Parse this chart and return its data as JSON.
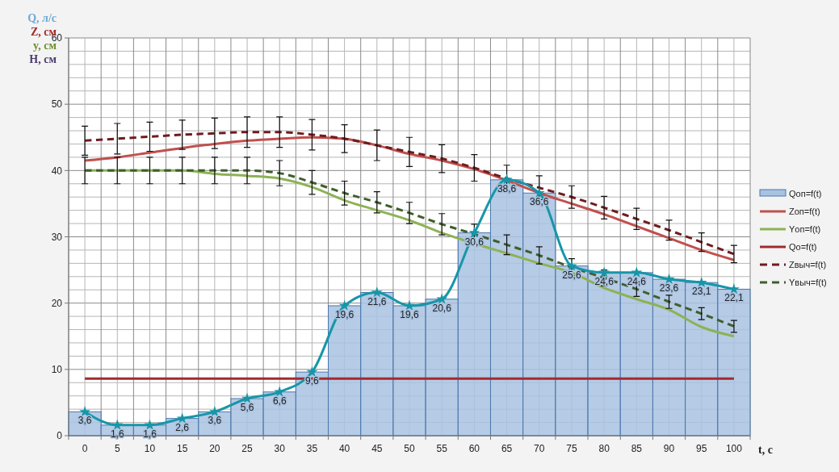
{
  "chart_data": {
    "type": "bar",
    "categories": [
      "0",
      "5",
      "10",
      "15",
      "20",
      "25",
      "30",
      "35",
      "40",
      "45",
      "50",
      "55",
      "60",
      "65",
      "70",
      "75",
      "80",
      "85",
      "90",
      "95",
      "100"
    ],
    "xlabel": "t, с",
    "annotations": [
      "Q, л/с",
      "Z, см",
      "y, см",
      "H, см"
    ],
    "ylim": [
      0,
      60
    ],
    "yticks": [
      0,
      {
        "value": 2,
        "label": null
      },
      {
        "value": 4,
        "label": null
      },
      {
        "value": 6,
        "label": null
      },
      {
        "value": 8,
        "label": null
      },
      10,
      {
        "value": 12,
        "label": null
      },
      {
        "value": 14,
        "label": null
      },
      {
        "value": 16,
        "label": null
      },
      {
        "value": 18,
        "label": null
      },
      20,
      {
        "value": 22,
        "label": null
      },
      {
        "value": 24,
        "label": null
      },
      {
        "value": 26,
        "label": null
      },
      {
        "value": 28,
        "label": null
      },
      30,
      {
        "value": 32,
        "label": null
      },
      {
        "value": 34,
        "label": null
      },
      {
        "value": 36,
        "label": null
      },
      {
        "value": 38,
        "label": null
      },
      40,
      {
        "value": 42,
        "label": null
      },
      {
        "value": 44,
        "label": null
      },
      {
        "value": 46,
        "label": null
      },
      {
        "value": 48,
        "label": null
      },
      50,
      {
        "value": 52,
        "label": null
      },
      {
        "value": 54,
        "label": null
      },
      {
        "value": 56,
        "label": null
      },
      {
        "value": 58,
        "label": null
      },
      60
    ],
    "grid": true,
    "legend": "right",
    "series": [
      {
        "name": "Qоп=f(t)",
        "color": "#a9c2e0",
        "values": [
          3.6,
          1.6,
          1.6,
          2.6,
          3.6,
          5.6,
          6.6,
          9.6,
          19.6,
          21.6,
          19.6,
          20.6,
          30.6,
          38.6,
          36.6,
          25.6,
          24.6,
          24.6,
          23.6,
          23.1,
          22.1
        ],
        "value_labels": [
          "3,6",
          "1,6",
          "1,6",
          "2,6",
          "3,6",
          "5,6",
          "6,6",
          "9,6",
          "19,6",
          "21,6",
          "19,6",
          "20,6",
          "30,6",
          "38,6",
          "36,6",
          "25,6",
          "24,6",
          "24,6",
          "23,6",
          "23,1",
          "22,1"
        ]
      },
      {
        "name": "Zоп=f(t)",
        "type": "line",
        "color": "#c0504d",
        "line_style": "solid",
        "marker": "none",
        "values": [
          41.5,
          42,
          42.7,
          43.4,
          44,
          44.5,
          44.8,
          45,
          44.8,
          43.8,
          42.5,
          41.5,
          40.2,
          38.5,
          36.6,
          35,
          33.4,
          31.6,
          29.8,
          28,
          26.5
        ]
      },
      {
        "name": "Yоп=f(t)",
        "type": "line",
        "color": "#8db255",
        "line_style": "solid",
        "marker": "none",
        "values": [
          40,
          40,
          40,
          40,
          39.5,
          39.2,
          38.8,
          37.5,
          35.5,
          34,
          32.5,
          30.6,
          29,
          27.5,
          26,
          24.6,
          22.3,
          20.6,
          19,
          16.4,
          15
        ]
      },
      {
        "name": "Qо=f(t)",
        "type": "line",
        "color": "#a32a2e",
        "line_style": "solid",
        "marker": "none",
        "values": [
          8.6,
          8.6,
          8.6,
          8.6,
          8.6,
          8.6,
          8.6,
          8.6,
          8.6,
          8.6,
          8.6,
          8.6,
          8.6,
          8.6,
          8.6,
          8.6,
          8.6,
          8.6,
          8.6,
          8.6,
          8.6
        ]
      },
      {
        "name": "Zвыч=f(t)",
        "type": "line",
        "color": "#6e1c1e",
        "line_style": "dashed",
        "marker": "none",
        "values": [
          44.5,
          44.8,
          45.1,
          45.4,
          45.6,
          45.8,
          45.8,
          45.4,
          44.8,
          43.8,
          42.8,
          41.8,
          40.4,
          38.8,
          37.4,
          36,
          34.4,
          32.7,
          31,
          29.2,
          27.4
        ],
        "errors": [
          2.2,
          2.3,
          2.2,
          2.2,
          2.3,
          2.3,
          2.3,
          2.3,
          2.1,
          2.3,
          2.2,
          2.1,
          2,
          2,
          1.8,
          1.7,
          1.7,
          1.6,
          1.5,
          1.4,
          1.3
        ]
      },
      {
        "name": "Yвыч=f(t)",
        "type": "line",
        "color": "#3f5f2c",
        "line_style": "dashed",
        "marker": "none",
        "values": [
          40,
          40,
          40,
          40,
          40,
          40,
          39.6,
          38.2,
          36.6,
          35.2,
          33.6,
          31.9,
          30.4,
          28.8,
          27.2,
          25.4,
          23.8,
          22.1,
          20.2,
          18.4,
          16.5
        ],
        "errors": [
          2,
          2,
          2,
          2,
          2,
          2,
          1.9,
          1.8,
          1.8,
          1.6,
          1.6,
          1.6,
          1.5,
          1.5,
          1.3,
          1.3,
          1.2,
          1.1,
          1,
          0.9,
          0.9
        ]
      },
      {
        "type": "line",
        "color": "#1796a8",
        "line_style": "solid",
        "marker": "star",
        "values": [
          3.6,
          1.6,
          1.6,
          2.6,
          3.6,
          5.6,
          6.6,
          9.6,
          19.6,
          21.6,
          19.6,
          20.6,
          30.6,
          38.6,
          36.6,
          25.6,
          24.6,
          24.6,
          23.6,
          23.1,
          22.1
        ]
      }
    ]
  }
}
